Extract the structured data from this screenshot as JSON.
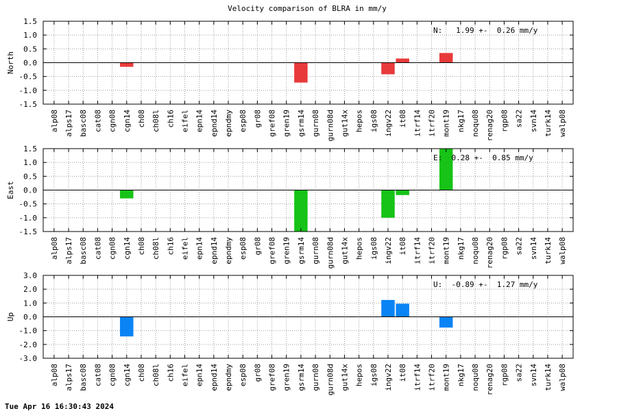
{
  "title": "Velocity comparison of BLRA in mm/y",
  "timestamp": "Tue Apr 16 16:30:43 2024",
  "stations": [
    "alp08",
    "alps17",
    "basc08",
    "cat08",
    "cgn08",
    "cgn14",
    "ch08",
    "ch08l",
    "ch16",
    "eifel",
    "epn14",
    "epnd14",
    "epndmy",
    "esp08",
    "gr08",
    "gref08",
    "gren19",
    "gsrm14",
    "gurn08",
    "gurn08d",
    "gut14x",
    "hepos",
    "igs08",
    "ingv22",
    "it08",
    "itrf14",
    "itrf20",
    "mont19",
    "nkg17",
    "noqu08",
    "renag20",
    "rgp08",
    "sa22",
    "svn14",
    "turk14",
    "walp08"
  ],
  "chart_data": [
    {
      "type": "bar",
      "ylabel": "North",
      "color": "#e83a3a",
      "ylim": [
        -1.5,
        1.5
      ],
      "yticks": [
        "1.5",
        "1.0",
        "0.5",
        "0.0",
        "-0.5",
        "-1.0",
        "-1.5"
      ],
      "annotation": "N:   1.99 +-  0.26 mm/y",
      "grid": true,
      "values": [
        0,
        0,
        0,
        0,
        0,
        -0.15,
        0,
        0,
        0,
        0,
        0,
        0,
        0,
        0,
        0,
        0,
        0,
        -0.72,
        0,
        0,
        0,
        0,
        0,
        -0.42,
        0.15,
        0,
        0,
        0.35,
        0,
        0,
        0,
        0,
        0,
        0,
        0,
        0
      ]
    },
    {
      "type": "bar",
      "ylabel": "East",
      "color": "#16c316",
      "ylim": [
        -1.5,
        1.5
      ],
      "yticks": [
        "1.5",
        "1.0",
        "0.5",
        "0.0",
        "-0.5",
        "-1.0",
        "-1.5"
      ],
      "annotation": "E:  0.28 +-  0.85 mm/y",
      "grid": true,
      "values": [
        0,
        0,
        0,
        0,
        0,
        -0.3,
        0,
        0,
        0,
        0,
        0,
        0,
        0,
        0,
        0,
        0,
        0,
        -1.5,
        0,
        0,
        0,
        0,
        0,
        -1.0,
        -0.18,
        0,
        0,
        1.5,
        0,
        0,
        0,
        0,
        0,
        0,
        0,
        0
      ]
    },
    {
      "type": "bar",
      "ylabel": "Up",
      "color": "#0a84f5",
      "ylim": [
        -3.0,
        3.0
      ],
      "yticks": [
        "3.0",
        "2.0",
        "1.0",
        "0.0",
        "-1.0",
        "-2.0",
        "-3.0"
      ],
      "annotation": "U:  -0.89 +-  1.27 mm/y",
      "grid": true,
      "values": [
        0,
        0,
        0,
        0,
        0,
        -1.42,
        0,
        0,
        0,
        0,
        0,
        0,
        0,
        0,
        0,
        0,
        0,
        0,
        0,
        0,
        0,
        0,
        0,
        1.22,
        0.95,
        0,
        0,
        -0.78,
        0,
        0,
        0,
        0,
        0,
        0,
        0,
        0
      ]
    }
  ]
}
